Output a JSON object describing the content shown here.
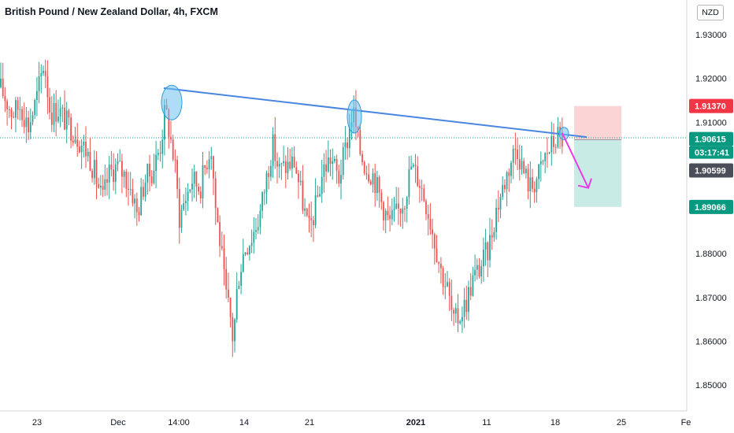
{
  "header": {
    "title": "British Pound / New Zealand Dollar, 4h, FXCM",
    "currency_button": "NZD"
  },
  "price_tags": {
    "stop": {
      "label": "1.91370",
      "value": 1.9137,
      "color": "#f23645"
    },
    "current": {
      "label": "1.90615",
      "value": 1.90615,
      "color": "#089981"
    },
    "countdown": {
      "label": "03:17:41",
      "color": "#089981"
    },
    "entry": {
      "label": "1.90599",
      "value": 1.90599,
      "color": "#4a4e59"
    },
    "target": {
      "label": "1.89066",
      "value": 1.89066,
      "color": "#089981"
    }
  },
  "colors": {
    "up": "#26a69a",
    "down": "#ef5350",
    "trendline": "#4a86e0",
    "highlight_fill": "#6ec1f0",
    "arrow": "#e83de8",
    "risk_zone": "#fbd5d5",
    "reward_zone": "#c9ebe6",
    "axis_line": "#d1d4dc"
  },
  "chart_data": {
    "type": "candlestick",
    "symbol": "GBP/NZD",
    "interval": "4h",
    "source": "FXCM",
    "ylim": [
      1.845,
      1.935
    ],
    "y_ticks": [
      {
        "value": 1.93,
        "label": "1.93000"
      },
      {
        "value": 1.92,
        "label": "1.92000"
      },
      {
        "value": 1.91,
        "label": "1.91000"
      },
      {
        "value": 1.88,
        "label": "1.88000"
      },
      {
        "value": 1.87,
        "label": "1.87000"
      },
      {
        "value": 1.86,
        "label": "1.86000"
      },
      {
        "value": 1.85,
        "label": "1.85000"
      }
    ],
    "x_ticks": [
      "23",
      "Dec",
      "14:00",
      "14",
      "21",
      "2021",
      "11",
      "18",
      "25",
      "Fe"
    ],
    "bold_x_ticks": [
      "2021"
    ],
    "price_path": [
      [
        0,
        1.918
      ],
      [
        8,
        1.915
      ],
      [
        16,
        1.912
      ],
      [
        26,
        1.914
      ],
      [
        36,
        1.909
      ],
      [
        46,
        1.915
      ],
      [
        56,
        1.924
      ],
      [
        64,
        1.912
      ],
      [
        74,
        1.913
      ],
      [
        84,
        1.91
      ],
      [
        94,
        1.908
      ],
      [
        104,
        1.905
      ],
      [
        114,
        1.902
      ],
      [
        124,
        1.896
      ],
      [
        130,
        1.892
      ],
      [
        138,
        1.898
      ],
      [
        148,
        1.9
      ],
      [
        158,
        1.898
      ],
      [
        168,
        1.894
      ],
      [
        174,
        1.889
      ],
      [
        184,
        1.897
      ],
      [
        194,
        1.899
      ],
      [
        204,
        1.905
      ],
      [
        210,
        1.913
      ],
      [
        216,
        1.907
      ],
      [
        222,
        1.9
      ],
      [
        228,
        1.888
      ],
      [
        234,
        1.892
      ],
      [
        244,
        1.897
      ],
      [
        254,
        1.895
      ],
      [
        262,
        1.901
      ],
      [
        268,
        1.905
      ],
      [
        274,
        1.89
      ],
      [
        280,
        1.882
      ],
      [
        286,
        1.871
      ],
      [
        292,
        1.866
      ],
      [
        296,
        1.86
      ],
      [
        302,
        1.874
      ],
      [
        310,
        1.881
      ],
      [
        320,
        1.884
      ],
      [
        330,
        1.889
      ],
      [
        338,
        1.897
      ],
      [
        346,
        1.905
      ],
      [
        354,
        1.899
      ],
      [
        364,
        1.9
      ],
      [
        374,
        1.901
      ],
      [
        384,
        1.892
      ],
      [
        392,
        1.885
      ],
      [
        400,
        1.89
      ],
      [
        410,
        1.899
      ],
      [
        420,
        1.902
      ],
      [
        430,
        1.897
      ],
      [
        440,
        1.905
      ],
      [
        448,
        1.913
      ],
      [
        456,
        1.904
      ],
      [
        464,
        1.9
      ],
      [
        474,
        1.898
      ],
      [
        484,
        1.892
      ],
      [
        494,
        1.887
      ],
      [
        504,
        1.889
      ],
      [
        514,
        1.893
      ],
      [
        522,
        1.9
      ],
      [
        532,
        1.897
      ],
      [
        542,
        1.891
      ],
      [
        552,
        1.883
      ],
      [
        560,
        1.876
      ],
      [
        568,
        1.872
      ],
      [
        576,
        1.864
      ],
      [
        584,
        1.866
      ],
      [
        592,
        1.869
      ],
      [
        600,
        1.874
      ],
      [
        610,
        1.877
      ],
      [
        620,
        1.881
      ],
      [
        630,
        1.89
      ],
      [
        640,
        1.896
      ],
      [
        650,
        1.902
      ],
      [
        656,
        1.905
      ],
      [
        664,
        1.899
      ],
      [
        674,
        1.895
      ],
      [
        684,
        1.898
      ],
      [
        694,
        1.903
      ],
      [
        702,
        1.905
      ],
      [
        708,
        1.907
      ],
      [
        714,
        1.9062
      ]
    ],
    "trendline": {
      "x": [
        208,
        745
      ],
      "y": [
        1.9178,
        1.9066
      ]
    },
    "touch_points": [
      {
        "x": 218,
        "y": 1.9145
      },
      {
        "x": 450,
        "y": 1.9113
      },
      {
        "x": 716,
        "y": 1.9074
      }
    ],
    "projection_arrow": {
      "from": {
        "x": 714,
        "y": 1.9075
      },
      "to": {
        "x": 747,
        "y": 1.895
      }
    },
    "position": {
      "x_start": 729,
      "x_end": 789,
      "stop": 1.9137,
      "entry": 1.90599,
      "target": 1.89066
    }
  }
}
